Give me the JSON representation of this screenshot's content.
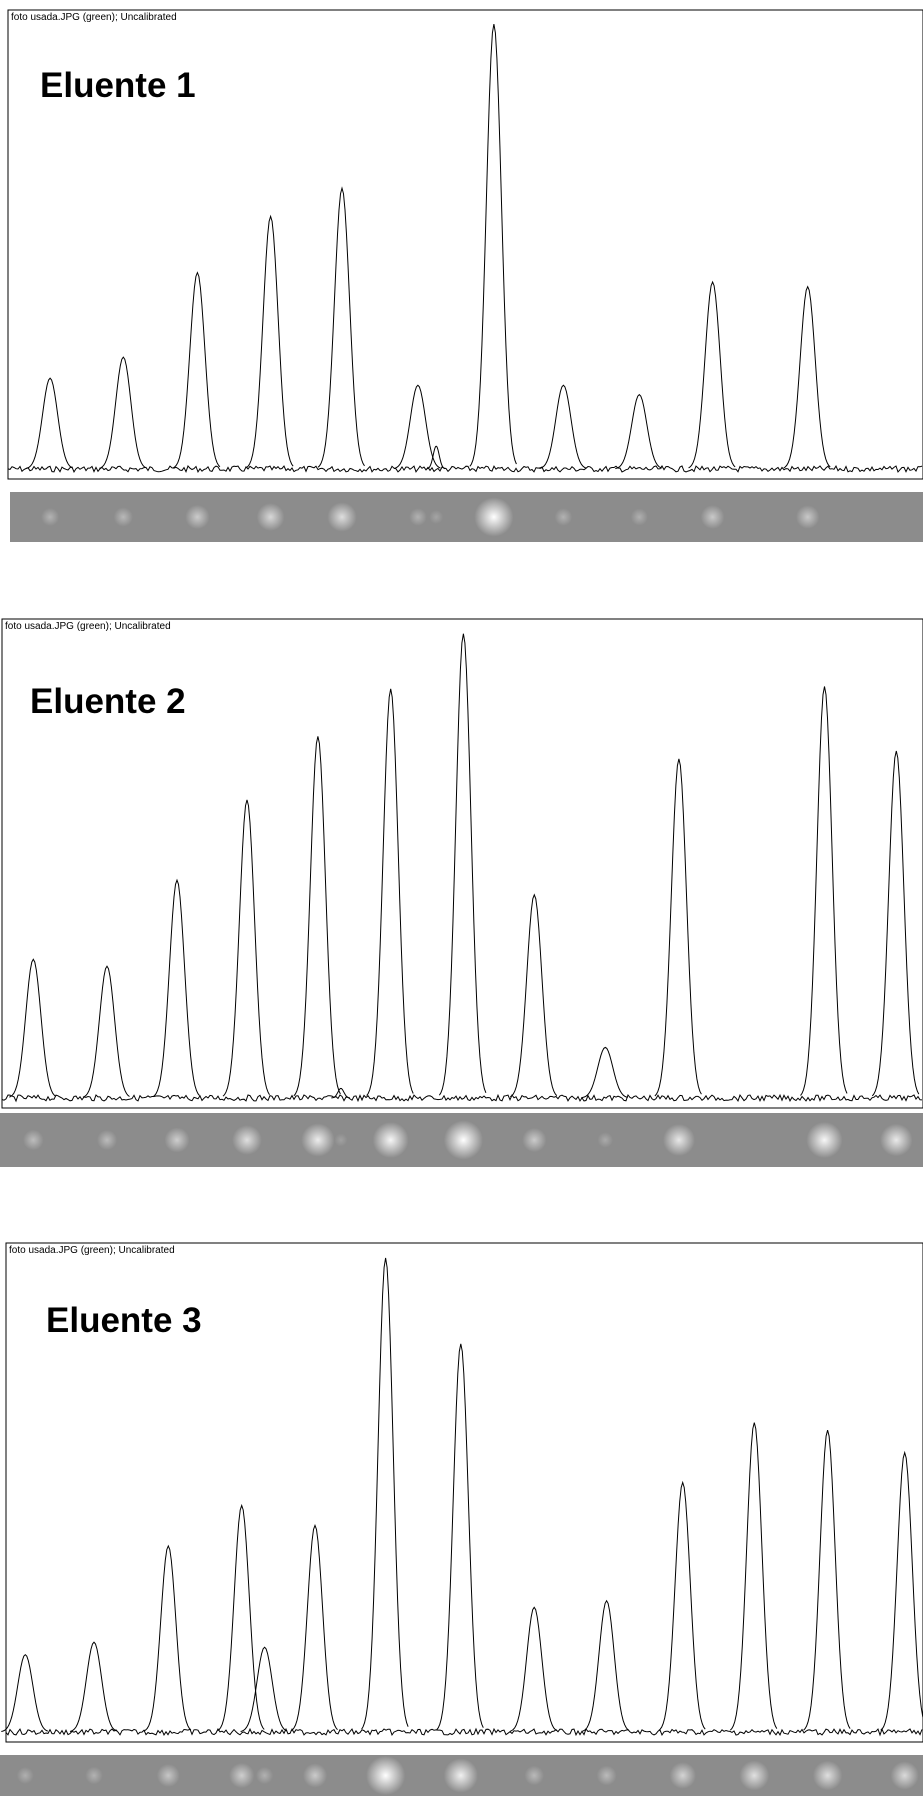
{
  "chart_data": [
    {
      "type": "line",
      "title": "Eluente 1",
      "subtitle": "foto usada.JPG (green); Uncalibrated",
      "xlim": [
        0,
        100
      ],
      "ylim": [
        0,
        100
      ],
      "x": [
        4.6,
        12.6,
        20.7,
        28.7,
        36.5,
        44.8,
        46.8,
        53.1,
        60.7,
        69,
        77,
        87.4
      ],
      "series": [
        {
          "color": "#000000",
          "values": [
            21.5,
            26,
            44,
            56,
            62,
            20,
            7,
            97,
            20,
            18,
            42,
            41
          ]
        }
      ]
    },
    {
      "type": "line",
      "title": "Eluente 2",
      "subtitle": "foto usada.JPG (green); Uncalibrated",
      "xlim": [
        0,
        100
      ],
      "ylim": [
        0,
        100
      ],
      "x": [
        3.4,
        11.4,
        19,
        26.6,
        34.3,
        36.8,
        42.2,
        50.1,
        57.8,
        65.5,
        73.5,
        89.3,
        97.1
      ],
      "series": [
        {
          "color": "#000000",
          "values": [
            30.4,
            29,
            46.6,
            63,
            76,
            4,
            85.7,
            97,
            43.6,
            12.4,
            71.4,
            86.2,
            73
          ]
        }
      ]
    },
    {
      "type": "line",
      "title": "Eluente 3",
      "subtitle": "foto usada.JPG (green); Uncalibrated",
      "xlim": [
        0,
        100
      ],
      "ylim": [
        0,
        100
      ],
      "x": [
        2.1,
        9.6,
        17.7,
        25.7,
        28.2,
        33.7,
        41.4,
        49.6,
        57.6,
        65.5,
        73.8,
        81.6,
        89.6,
        98
      ],
      "series": [
        {
          "color": "#000000",
          "values": [
            17.5,
            20,
            39.3,
            47.4,
            19,
            43.4,
            97,
            79.8,
            27,
            28.3,
            52,
            64,
            62.5,
            58
          ]
        }
      ]
    }
  ]
}
